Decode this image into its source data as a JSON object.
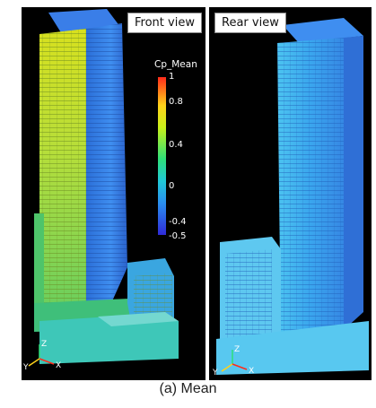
{
  "panels": {
    "front_label": "Front view",
    "rear_label": "Rear view"
  },
  "colorbar": {
    "title": "Cp_Mean",
    "ticks": [
      "1",
      "0.8",
      "0.4",
      "0",
      "-0.4",
      "-0.5"
    ]
  },
  "axes": {
    "x": "X",
    "y": "Y",
    "z": "Z"
  },
  "caption": "(a) Mean",
  "colors": {
    "high": "#ff2a1a",
    "mid": "#2ee07a",
    "low": "#2f2ad8"
  }
}
